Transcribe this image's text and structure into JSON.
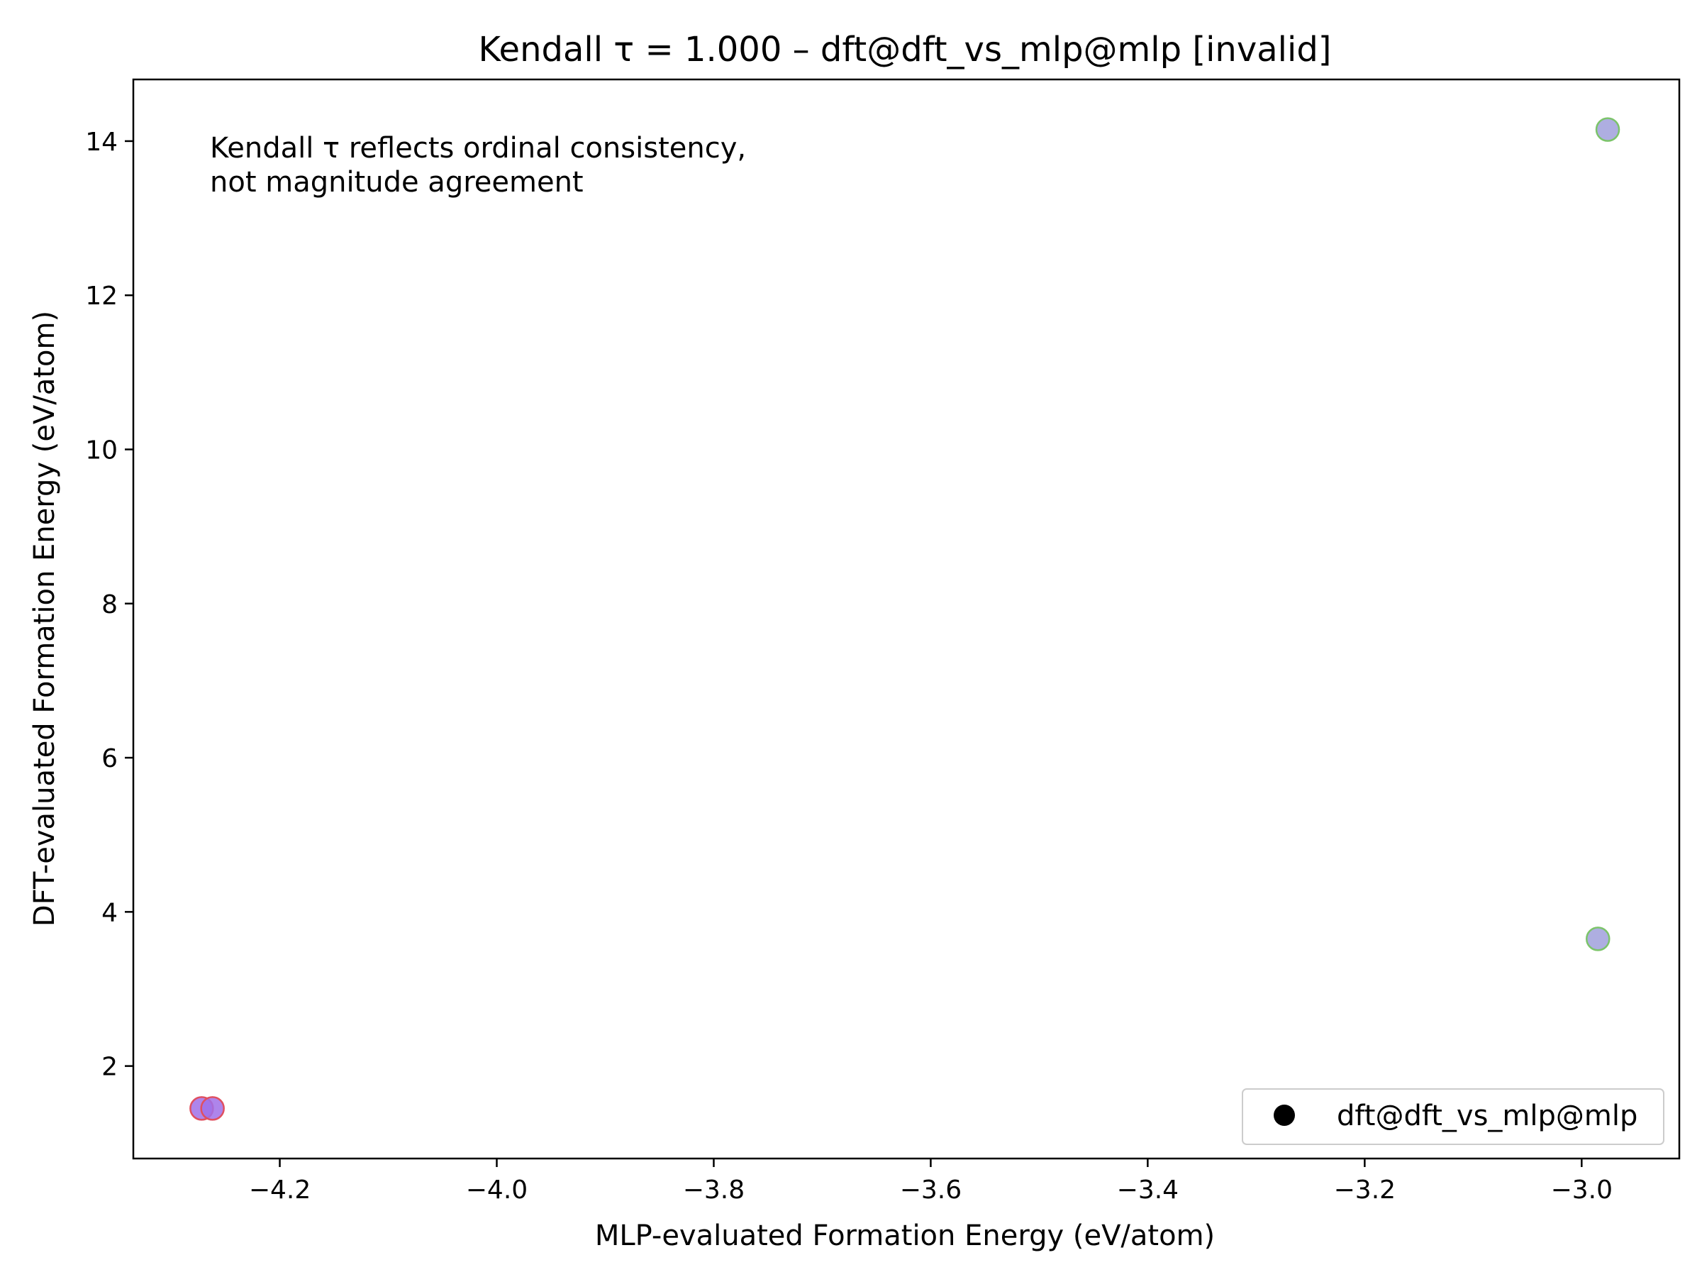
{
  "chart_data": {
    "type": "scatter",
    "title": "Kendall τ = 1.000 – dft@dft_vs_mlp@mlp [invalid]",
    "xlabel": "MLP-evaluated Formation Energy (eV/atom)",
    "ylabel": "DFT-evaluated Formation Energy (eV/atom)",
    "xlim": [
      -4.335,
      -2.91
    ],
    "ylim": [
      0.8,
      14.8
    ],
    "xticks": [
      -4.2,
      -4.0,
      -3.8,
      -3.6,
      -3.4,
      -3.2,
      -3.0
    ],
    "xtick_labels": [
      "−4.2",
      "−4.0",
      "−3.8",
      "−3.6",
      "−3.4",
      "−3.2",
      "−3.0"
    ],
    "yticks": [
      2,
      4,
      6,
      8,
      10,
      12,
      14
    ],
    "ytick_labels": [
      "2",
      "4",
      "6",
      "8",
      "10",
      "12",
      "14"
    ],
    "grid": false,
    "annotation": [
      "Kendall τ reflects ordinal consistency,",
      "not magnitude agreement"
    ],
    "legend": {
      "placement": "lower-right",
      "entries": [
        "dft@dft_vs_mlp@mlp"
      ]
    },
    "series": [
      {
        "name": "dft@dft_vs_mlp@mlp",
        "marker_color": "#000000",
        "points": [
          {
            "x": -4.272,
            "y": 1.45,
            "fill": "#a070e8",
            "edge": "#e05060"
          },
          {
            "x": -4.262,
            "y": 1.45,
            "fill": "#a070e8",
            "edge": "#e05060"
          },
          {
            "x": -2.985,
            "y": 3.65,
            "fill": "#a0a0dc",
            "edge": "#7cc46a"
          },
          {
            "x": -2.976,
            "y": 14.15,
            "fill": "#a0a0dc",
            "edge": "#7cc46a"
          }
        ]
      }
    ]
  }
}
